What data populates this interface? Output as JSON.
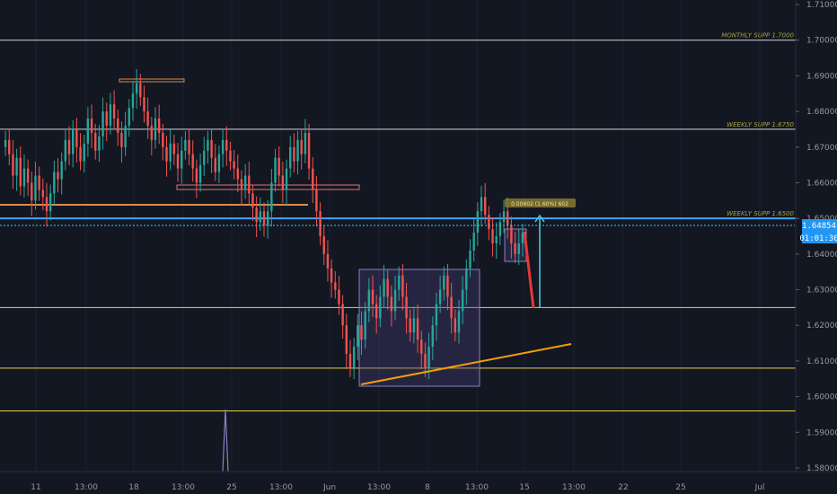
{
  "chart_data": {
    "type": "candlestick",
    "title": "",
    "ylim": [
      1.577,
      1.712
    ],
    "y_ticks": [
      "1.58000",
      "1.59000",
      "1.60000",
      "1.61000",
      "1.62000",
      "1.63000",
      "1.64000",
      "1.65000",
      "1.66000",
      "1.67000",
      "1.68000",
      "1.69000",
      "1.70000",
      "1.71000"
    ],
    "x_ticks": [
      "11",
      "13:00",
      "18",
      "13:00",
      "25",
      "13:00",
      "Jun",
      "13:00",
      "8",
      "13:00",
      "15",
      "13:00",
      "22",
      "25",
      "Jul"
    ],
    "last_price": "1.64854",
    "countdown": "01:01:30",
    "measure_label": "0.00602 (1.60%) 602",
    "level_labels": {
      "monthly": "MONTHLY SUPP 1.7000",
      "weekly_high": "WEEKLY SUPP 1.6750",
      "weekly_low": "WEEKLY SUPP 1.6500"
    },
    "horizontal_levels": [
      {
        "price": 1.7,
        "color": "#d1d4dc",
        "label_key": "monthly"
      },
      {
        "price": 1.675,
        "color": "#d1d4dc",
        "label_key": "weekly_high"
      },
      {
        "price": 1.65,
        "color": "#42a5f5",
        "label_key": "weekly_low"
      },
      {
        "price": 1.625,
        "color": "#e6d34a"
      },
      {
        "price": 1.608,
        "color": "#e6d34a"
      },
      {
        "price": 1.596,
        "color": "#e6d34a"
      }
    ],
    "candles_close": [
      1.672,
      1.668,
      1.662,
      1.667,
      1.659,
      1.664,
      1.66,
      1.655,
      1.662,
      1.658,
      1.656,
      1.652,
      1.657,
      1.663,
      1.661,
      1.666,
      1.672,
      1.668,
      1.675,
      1.67,
      1.666,
      1.671,
      1.678,
      1.674,
      1.669,
      1.673,
      1.68,
      1.676,
      1.682,
      1.678,
      1.674,
      1.67,
      1.676,
      1.681,
      1.685,
      1.688,
      1.684,
      1.68,
      1.676,
      1.672,
      1.678,
      1.674,
      1.67,
      1.666,
      1.671,
      1.668,
      1.664,
      1.669,
      1.672,
      1.668,
      1.664,
      1.66,
      1.665,
      1.669,
      1.672,
      1.667,
      1.663,
      1.668,
      1.672,
      1.669,
      1.666,
      1.664,
      1.661,
      1.658,
      1.662,
      1.657,
      1.653,
      1.649,
      1.652,
      1.648,
      1.652,
      1.66,
      1.667,
      1.662,
      1.658,
      1.664,
      1.67,
      1.666,
      1.672,
      1.668,
      1.674,
      1.664,
      1.658,
      1.652,
      1.645,
      1.64,
      1.636,
      1.632,
      1.63,
      1.626,
      1.62,
      1.612,
      1.608,
      1.614,
      1.62,
      1.616,
      1.624,
      1.63,
      1.626,
      1.622,
      1.628,
      1.633,
      1.628,
      1.624,
      1.63,
      1.634,
      1.628,
      1.622,
      1.618,
      1.622,
      1.616,
      1.612,
      1.608,
      1.614,
      1.62,
      1.626,
      1.63,
      1.634,
      1.628,
      1.622,
      1.618,
      1.624,
      1.63,
      1.636,
      1.641,
      1.646,
      1.652,
      1.656,
      1.651,
      1.647,
      1.643,
      1.645,
      1.649,
      1.652,
      1.648,
      1.643,
      1.64,
      1.643,
      1.646
    ],
    "levels_colors": {
      "up": "#26a69a",
      "down": "#ef5350"
    }
  }
}
